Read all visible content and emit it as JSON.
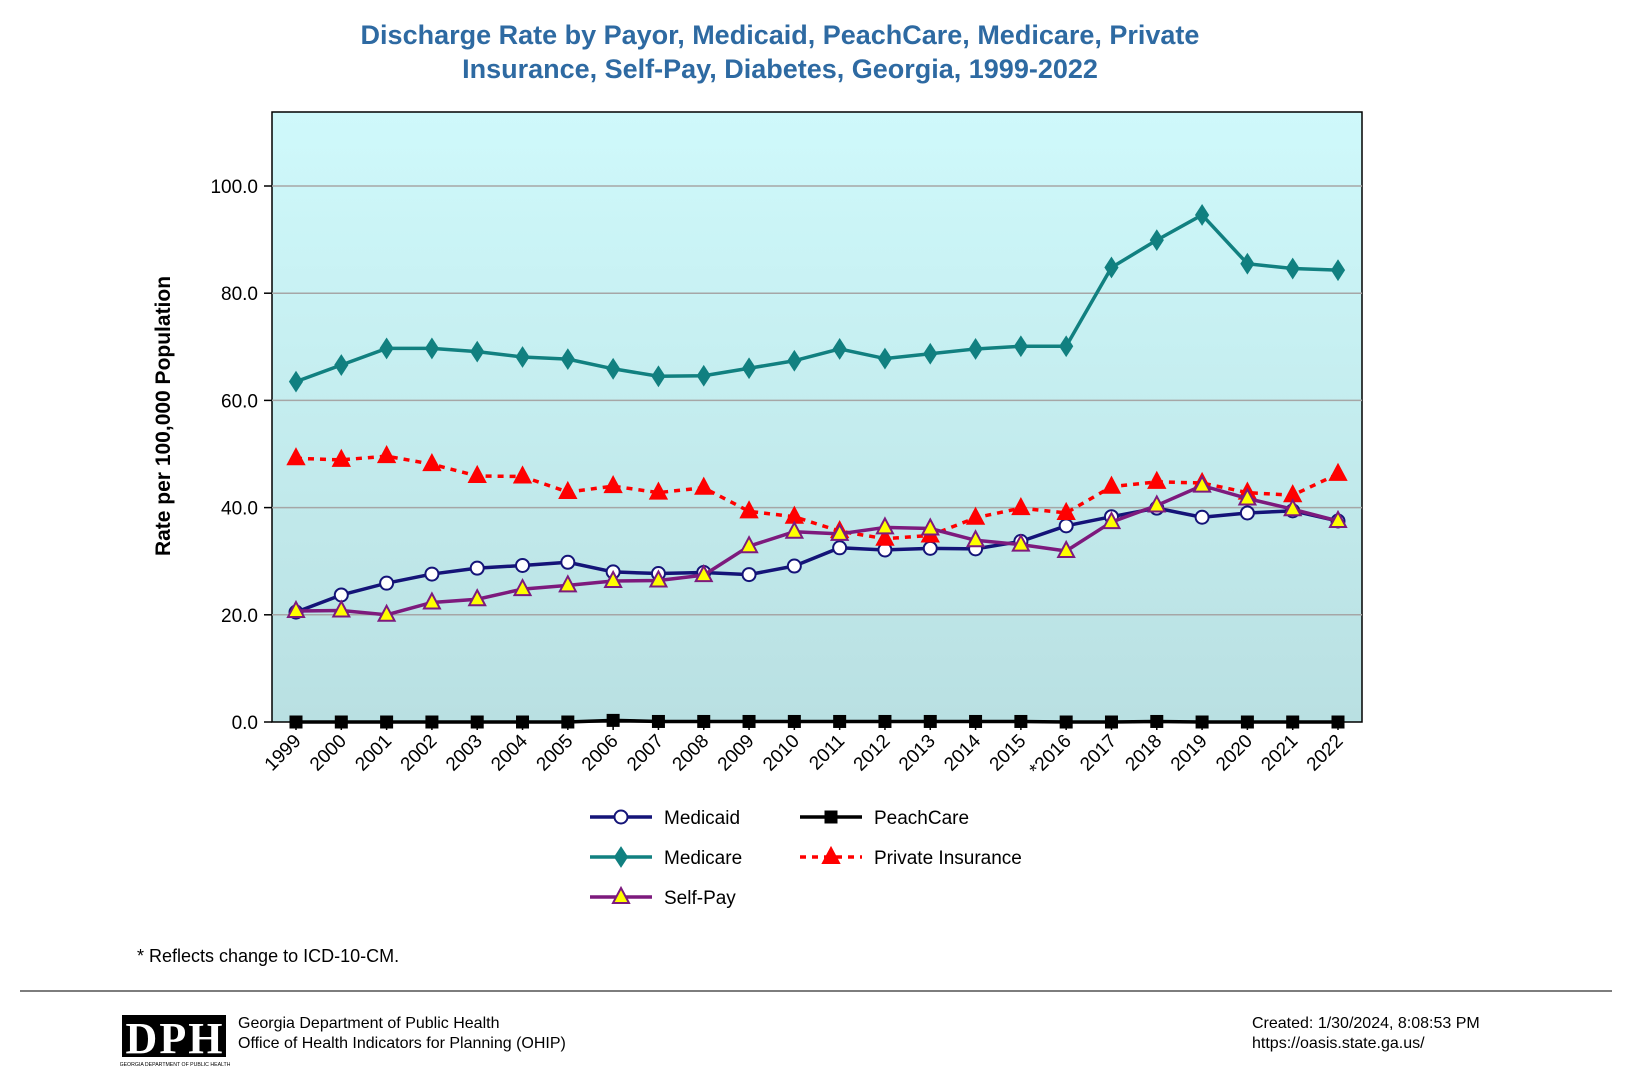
{
  "chart_data": {
    "type": "line",
    "title": "Discharge Rate by Payor, Medicaid, PeachCare, Medicare, Private Insurance, Self-Pay, Diabetes, Georgia, 1999-2022",
    "ylabel": "Rate per 100,000 Population",
    "xlabel": "",
    "ylim": [
      0,
      100
    ],
    "y_ticks": [
      "0.0",
      "20.0",
      "40.0",
      "60.0",
      "80.0",
      "100.0"
    ],
    "grid": true,
    "legend_position": "bottom",
    "plot_background": [
      "#cff9fb",
      "#b9e0e2"
    ],
    "categories": [
      "1999",
      "2000",
      "2001",
      "2002",
      "2003",
      "2004",
      "2005",
      "2006",
      "2007",
      "2008",
      "2009",
      "2010",
      "2011",
      "2012",
      "2013",
      "2014",
      "2015",
      "*2016",
      "2017",
      "2018",
      "2019",
      "2020",
      "2021",
      "2022"
    ],
    "series": [
      {
        "name": "Medicaid",
        "color": "#141478",
        "marker": "circle",
        "marker_fill": "#ffffff",
        "dash": false,
        "values": [
          20.5,
          23.7,
          25.9,
          27.6,
          28.7,
          29.2,
          29.8,
          28.0,
          27.7,
          27.9,
          27.5,
          29.1,
          32.5,
          32.1,
          32.4,
          32.3,
          33.7,
          36.6,
          38.3,
          39.9,
          38.2,
          39.0,
          39.4,
          37.5
        ]
      },
      {
        "name": "PeachCare",
        "color": "#000000",
        "marker": "square",
        "marker_fill": "#000000",
        "dash": false,
        "values": [
          0.0,
          0.0,
          0.0,
          0.0,
          0.0,
          0.0,
          0.0,
          0.3,
          0.1,
          0.1,
          0.1,
          0.1,
          0.1,
          0.1,
          0.1,
          0.1,
          0.1,
          0.0,
          0.0,
          0.1,
          0.0,
          0.0,
          0.0,
          0.0
        ]
      },
      {
        "name": "Medicare",
        "color": "#118080",
        "marker": "diamond",
        "marker_fill": "#118080",
        "dash": false,
        "values": [
          63.5,
          66.6,
          69.7,
          69.7,
          69.1,
          68.1,
          67.7,
          65.9,
          64.5,
          64.6,
          66.0,
          67.4,
          69.6,
          67.8,
          68.7,
          69.6,
          70.1,
          70.1,
          84.8,
          89.9,
          94.6,
          85.5,
          84.6,
          84.3
        ]
      },
      {
        "name": "Private Insurance",
        "color": "#ff0000",
        "marker": "triangle",
        "marker_fill": "#ff0000",
        "dash": true,
        "values": [
          49.2,
          48.9,
          49.6,
          48.1,
          45.9,
          45.8,
          42.9,
          44.0,
          42.8,
          43.7,
          39.3,
          38.3,
          35.6,
          34.2,
          34.8,
          38.1,
          39.9,
          39.0,
          43.9,
          44.8,
          44.6,
          42.8,
          42.3,
          46.3
        ]
      },
      {
        "name": "Self-Pay",
        "color": "#7d1a7d",
        "marker": "triangle",
        "marker_fill": "#ffff00",
        "dash": false,
        "values": [
          20.7,
          20.8,
          20.0,
          22.3,
          22.9,
          24.8,
          25.5,
          26.3,
          26.4,
          27.4,
          32.8,
          35.5,
          35.1,
          36.3,
          36.1,
          33.9,
          33.1,
          31.9,
          37.3,
          40.4,
          44.1,
          41.7,
          39.7,
          37.5
        ]
      }
    ],
    "footnote": "* Reflects change to ICD-10-CM."
  },
  "footer": {
    "org_line1": "Georgia Department of Public Health",
    "org_line2": "Office of Health Indicators for Planning (OHIP)",
    "created": "Created: 1/30/2024, 8:08:53 PM",
    "url": "https://oasis.state.ga.us/",
    "logo_text": "DPH",
    "logo_subtext": "GEORGIA DEPARTMENT OF PUBLIC HEALTH"
  }
}
